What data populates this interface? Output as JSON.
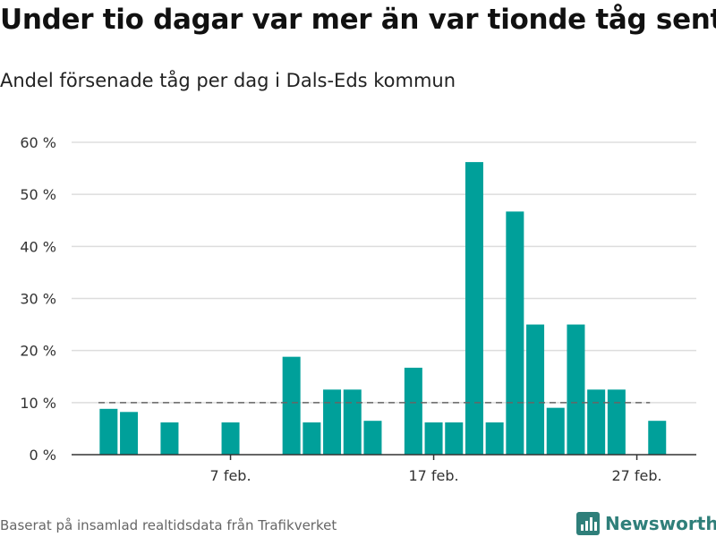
{
  "header": {
    "title": "Under tio dagar var mer än var tionde tåg sent",
    "subtitle": "Andel försenade tåg per dag i Dals-Eds kommun"
  },
  "footer": {
    "source": "Baserat på insamlad realtidsdata från Trafikverket",
    "brand": "Newsworthy"
  },
  "colors": {
    "bar": "#00a09a",
    "brand": "#2f7f7a",
    "grid": "#dddddd",
    "reference_line": "#666666"
  },
  "chart_data": {
    "type": "bar",
    "x": [
      "1 feb.",
      "2 feb.",
      "3 feb.",
      "4 feb.",
      "5 feb.",
      "6 feb.",
      "7 feb.",
      "8 feb.",
      "9 feb.",
      "10 feb.",
      "11 feb.",
      "12 feb.",
      "13 feb.",
      "14 feb.",
      "15 feb.",
      "16 feb.",
      "17 feb.",
      "18 feb.",
      "19 feb.",
      "20 feb.",
      "21 feb.",
      "22 feb.",
      "23 feb.",
      "24 feb.",
      "25 feb.",
      "26 feb.",
      "27 feb.",
      "28 feb."
    ],
    "values": [
      8.8,
      8.2,
      null,
      6.2,
      null,
      null,
      6.2,
      null,
      null,
      18.8,
      6.2,
      12.5,
      12.5,
      6.5,
      null,
      16.7,
      6.2,
      6.2,
      56.2,
      6.2,
      46.7,
      25.0,
      9.0,
      25.0,
      12.5,
      12.5,
      null,
      6.5
    ],
    "unit": "%",
    "y_ticks": [
      "0 %",
      "10 %",
      "20 %",
      "30 %",
      "40 %",
      "50 %",
      "60 %"
    ],
    "x_ticks": [
      "7 feb.",
      "17 feb.",
      "27 feb."
    ],
    "ylim": [
      0,
      60
    ],
    "reference_line": 10,
    "grid": true,
    "legend": "none"
  }
}
